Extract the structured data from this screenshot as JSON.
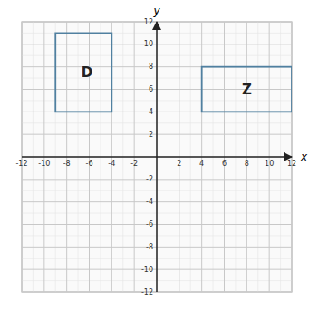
{
  "chart_data": {
    "type": "rectangle",
    "xlabel": "x",
    "ylabel": "y",
    "xlim": [
      -12,
      12
    ],
    "ylim": [
      -12,
      12
    ],
    "xticks": [
      -12,
      -10,
      -8,
      -6,
      -4,
      -2,
      2,
      4,
      6,
      8,
      10,
      12
    ],
    "yticks": [
      -12,
      -10,
      -8,
      -6,
      -4,
      -2,
      2,
      4,
      6,
      8,
      10,
      12
    ],
    "grid": true,
    "color": "#5080a0",
    "shapes": [
      {
        "x": -9,
        "y": 4,
        "width": 5,
        "height": 7
      },
      {
        "x": 4,
        "y": 4,
        "width": 8,
        "height": 4
      }
    ],
    "annotations": [
      {
        "text": "D",
        "x": -6.2,
        "y": 7.5
      },
      {
        "text": "Z",
        "x": 8.0,
        "y": 6.0
      }
    ]
  }
}
